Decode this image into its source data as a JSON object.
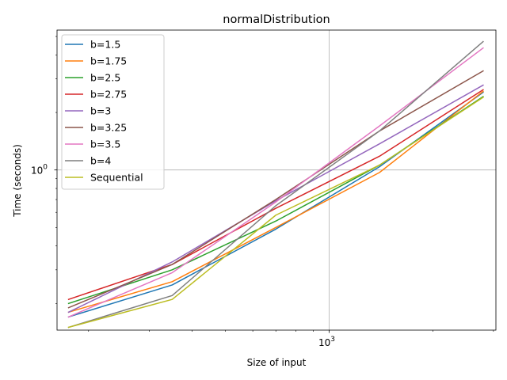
{
  "chart_data": {
    "type": "line",
    "title": "normalDistribution",
    "xlabel": "Size of input",
    "ylabel": "Time (seconds)",
    "xscale": "log",
    "yscale": "log",
    "xlim": [
      162,
      3050
    ],
    "ylim": [
      0.145,
      5.4
    ],
    "x_major_tick_labels": [
      {
        "value": 1000,
        "base": "10",
        "exp": "3"
      }
    ],
    "y_major_tick_labels": [
      {
        "value": 1,
        "base": "10",
        "exp": "0"
      }
    ],
    "grid": "major",
    "legend_position": "upper-left",
    "x": [
      175,
      350,
      700,
      1400,
      2800
    ],
    "series": [
      {
        "name": "b=1.5",
        "color": "#1f77b4",
        "values": [
          0.17,
          0.25,
          0.49,
          1.04,
          2.55
        ]
      },
      {
        "name": "b=1.75",
        "color": "#ff7f0e",
        "values": [
          0.18,
          0.26,
          0.5,
          0.97,
          2.58
        ]
      },
      {
        "name": "b=2.5",
        "color": "#2ca02c",
        "values": [
          0.2,
          0.3,
          0.54,
          1.06,
          2.42
        ]
      },
      {
        "name": "b=2.75",
        "color": "#d62728",
        "values": [
          0.21,
          0.32,
          0.63,
          1.18,
          2.63
        ]
      },
      {
        "name": "b=3",
        "color": "#9467bd",
        "values": [
          0.18,
          0.33,
          0.69,
          1.37,
          2.78
        ]
      },
      {
        "name": "b=3.25",
        "color": "#8c564b",
        "values": [
          0.19,
          0.32,
          0.7,
          1.6,
          3.3
        ]
      },
      {
        "name": "b=3.5",
        "color": "#e377c2",
        "values": [
          0.17,
          0.29,
          0.68,
          1.7,
          4.35
        ]
      },
      {
        "name": "b=4",
        "color": "#7f7f7f",
        "values": [
          0.15,
          0.22,
          0.65,
          1.6,
          4.7
        ]
      },
      {
        "name": "Sequential",
        "color": "#bcbd22",
        "values": [
          0.15,
          0.21,
          0.58,
          1.06,
          2.4
        ]
      }
    ]
  }
}
